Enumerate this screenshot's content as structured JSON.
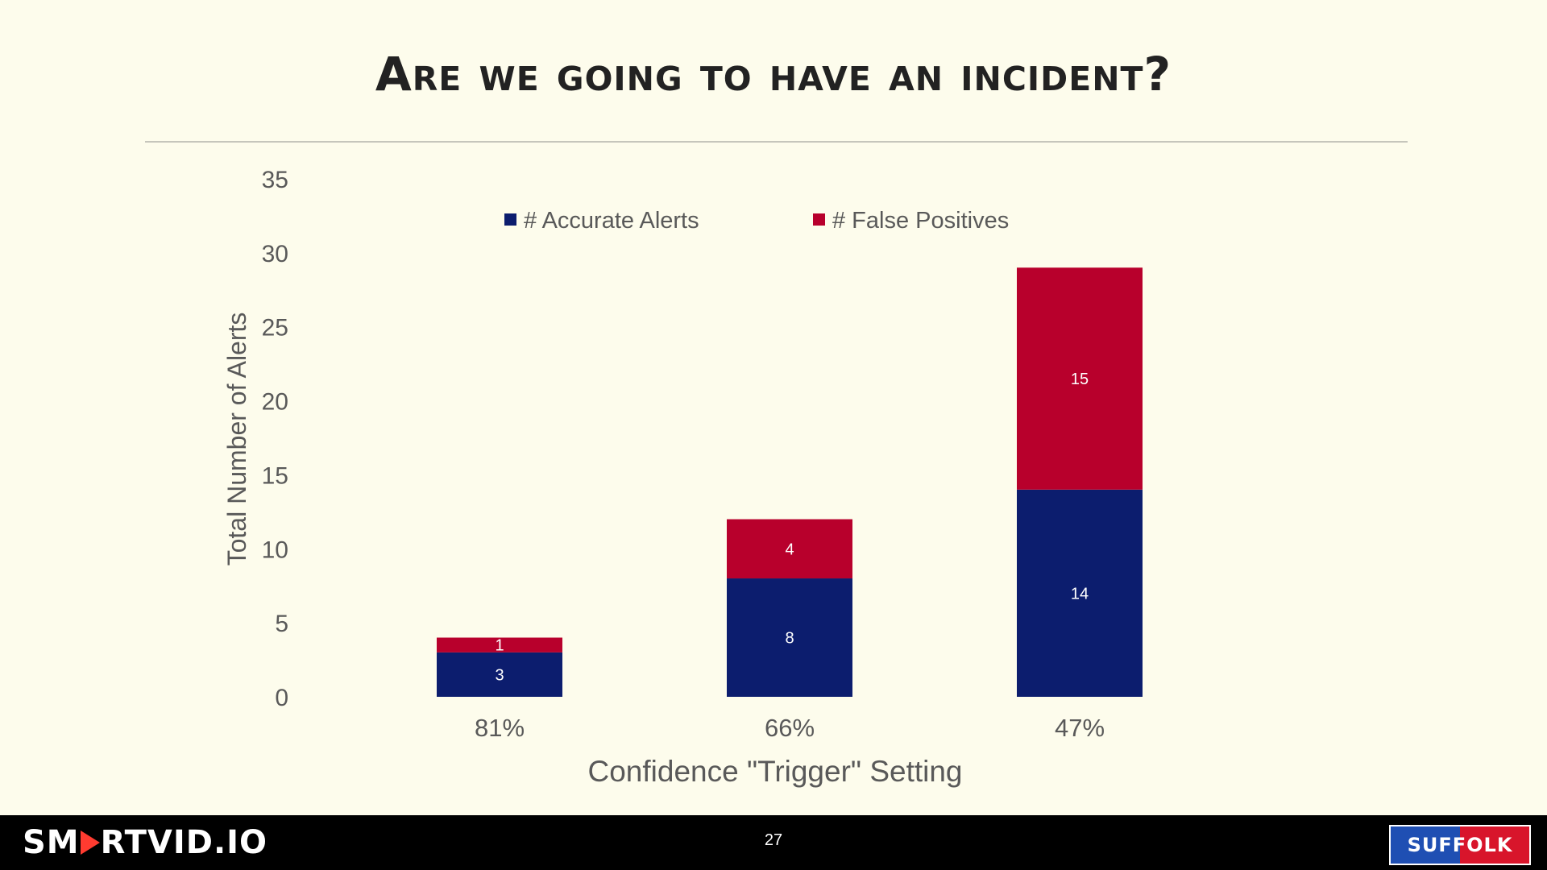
{
  "slide": {
    "title": "Are we going to have an incident?"
  },
  "footer": {
    "brand": "SMARTVID.IO",
    "page_number": "27",
    "client": "SUFFOLK"
  },
  "colors": {
    "accurate": "#0c1d6e",
    "false_positive": "#b8002c",
    "background": "#fdfcec"
  },
  "chart_data": {
    "type": "bar",
    "stacked": true,
    "categories": [
      "81%",
      "66%",
      "47%"
    ],
    "series": [
      {
        "name": "# Accurate Alerts",
        "values": [
          3,
          8,
          14
        ],
        "color": "#0c1d6e"
      },
      {
        "name": "# False Positives",
        "values": [
          1,
          4,
          15
        ],
        "color": "#b8002c"
      }
    ],
    "title": "",
    "xlabel": "Confidence \"Trigger\" Setting",
    "ylabel": "Total Number of Alerts",
    "ylim": [
      0,
      35
    ],
    "yticks": [
      0,
      5,
      10,
      15,
      20,
      25,
      30,
      35
    ],
    "grid": false,
    "legend": "top",
    "data_labels": true
  }
}
